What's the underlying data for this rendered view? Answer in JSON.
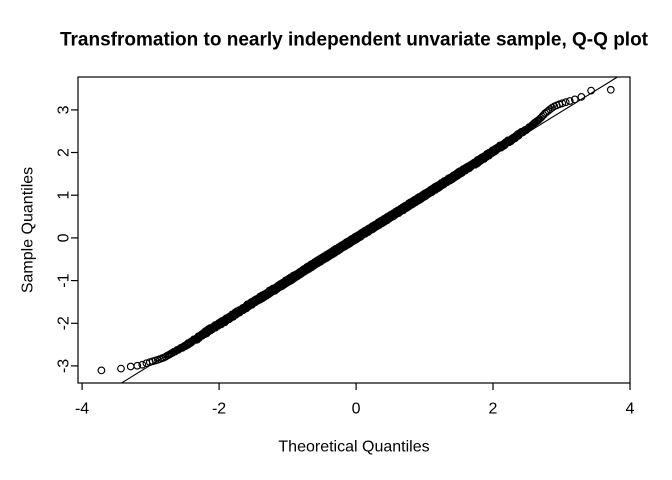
{
  "chart_data": {
    "type": "scatter",
    "subtype": "qq-normal-plot",
    "title": "Transfromation to nearly independent unvariate sample, Q-Q plot",
    "xlabel": "Theoretical Quantiles",
    "ylabel": "Sample Quantiles",
    "xlim": [
      -4.06,
      4.0
    ],
    "ylim": [
      -3.4,
      3.77
    ],
    "x_ticks": [
      -4,
      -2,
      0,
      2,
      4
    ],
    "y_ticks": [
      -3,
      -2,
      -1,
      0,
      1,
      2,
      3
    ],
    "grid": false,
    "legend": null,
    "n_points": 5000,
    "marker": {
      "shape": "open-circle",
      "radius_px": 3.3,
      "color": "#000000"
    },
    "reference_line": {
      "slope": 0.99,
      "intercept": -0.01,
      "color": "#000000"
    },
    "qq_curve_anchors": [
      [
        -3.75,
        -3.11
      ],
      [
        -3.45,
        -3.07
      ],
      [
        -3.33,
        -3.02
      ],
      [
        -3.21,
        -3.0
      ],
      [
        -3.12,
        -2.97
      ],
      [
        -3.05,
        -2.93
      ],
      [
        -2.97,
        -2.89
      ],
      [
        -2.9,
        -2.86
      ],
      [
        -2.8,
        -2.8
      ],
      [
        -2.6,
        -2.62
      ],
      [
        -2.4,
        -2.43
      ],
      [
        -2.2,
        -2.22
      ],
      [
        -2.0,
        -2.02
      ],
      [
        -1.5,
        -1.51
      ],
      [
        -1.0,
        -1.01
      ],
      [
        -0.5,
        -0.5
      ],
      [
        0.0,
        0.0
      ],
      [
        0.5,
        0.5
      ],
      [
        1.0,
        1.0
      ],
      [
        1.5,
        1.51
      ],
      [
        2.0,
        2.02
      ],
      [
        2.3,
        2.34
      ],
      [
        2.55,
        2.61
      ],
      [
        2.69,
        2.8
      ],
      [
        2.76,
        2.92
      ],
      [
        2.88,
        3.07
      ],
      [
        2.98,
        3.14
      ],
      [
        3.17,
        3.23
      ],
      [
        3.3,
        3.31
      ],
      [
        3.45,
        3.47
      ],
      [
        3.71,
        3.47
      ]
    ],
    "notable_points": {
      "leftmost": [
        -3.75,
        -3.11
      ],
      "rightmost": [
        3.71,
        3.47
      ]
    },
    "jitter": {
      "amplitude": 0.03,
      "taper_start": 2.3,
      "taper_end": 2.7
    },
    "colors": {
      "foreground": "#000000",
      "background": "#ffffff"
    }
  }
}
